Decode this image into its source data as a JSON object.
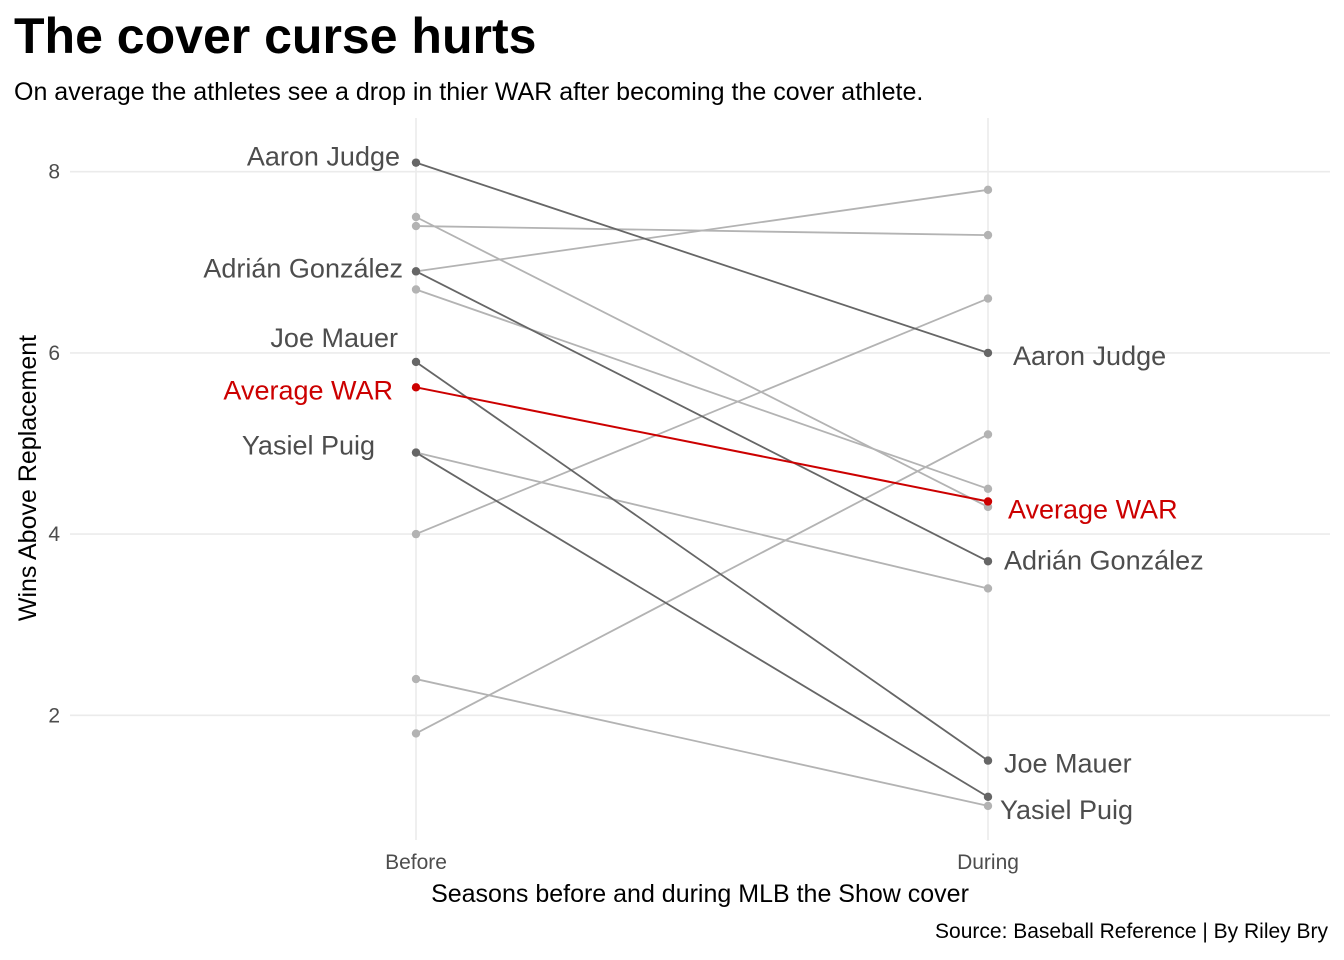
{
  "chart_data": {
    "type": "line",
    "title": "The cover curse hurts",
    "subtitle": "On average the athletes see a drop in thier WAR after becoming the cover athlete.",
    "caption": "Source: Baseball Reference | By Riley Bry",
    "xlabel": "Seasons before and during MLB the Show cover",
    "ylabel": "Wins Above Replacement",
    "categories": [
      "Before",
      "During"
    ],
    "y_ticks": [
      "2",
      "4",
      "6",
      "8"
    ],
    "ylim": [
      0.6,
      8.6
    ],
    "grid": true,
    "highlight_color": "#666666",
    "background_line_color": "#b3b3b3",
    "average_color": "#cc0000",
    "series": [
      {
        "values": [
          7.5,
          4.3
        ]
      },
      {
        "values": [
          7.4,
          7.3
        ]
      },
      {
        "values": [
          6.9,
          7.8
        ]
      },
      {
        "values": [
          6.7,
          4.5
        ]
      },
      {
        "values": [
          4.0,
          6.6
        ]
      },
      {
        "values": [
          4.9,
          3.4
        ]
      },
      {
        "values": [
          2.4,
          1.0
        ]
      },
      {
        "values": [
          1.8,
          5.1
        ]
      },
      {
        "name": "Aaron Judge",
        "highlight": true,
        "values": [
          8.1,
          6.0
        ]
      },
      {
        "name": "Adrián González",
        "highlight": true,
        "values": [
          6.9,
          3.7
        ]
      },
      {
        "name": "Joe Mauer",
        "highlight": true,
        "values": [
          5.9,
          1.5
        ]
      },
      {
        "name": "Yasiel Puig",
        "highlight": true,
        "values": [
          4.9,
          1.1
        ]
      },
      {
        "name": "Average WAR",
        "average": true,
        "values": [
          5.62,
          4.36
        ]
      }
    ]
  }
}
